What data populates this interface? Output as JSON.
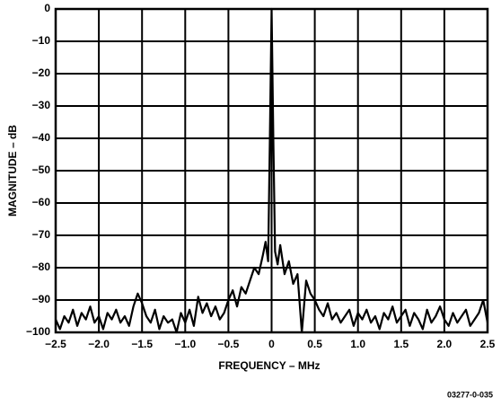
{
  "chart_data": {
    "type": "line",
    "x_label": "FREQUENCY – MHz",
    "y_label": "MAGNITUDE – dB",
    "annotation": "03277-0-035",
    "xlim": [
      -2.5,
      2.5
    ],
    "ylim": [
      -100,
      0
    ],
    "xticks": [
      {
        "value": -2.5,
        "label": "−2.5"
      },
      {
        "value": -2,
        "label": "−2.0"
      },
      {
        "value": -1.5,
        "label": "−1.5"
      },
      {
        "value": -1,
        "label": "−1.0"
      },
      {
        "value": -0.5,
        "label": "−0.5"
      },
      0,
      0.5,
      {
        "value": 1,
        "label": "1.0"
      },
      1.5,
      {
        "value": 2,
        "label": "2.0"
      },
      2.5
    ],
    "yticks": [
      0,
      {
        "value": -10,
        "label": "−10"
      },
      {
        "value": -20,
        "label": "−20"
      },
      {
        "value": -30,
        "label": "−30"
      },
      {
        "value": -40,
        "label": "−40"
      },
      {
        "value": -50,
        "label": "−50"
      },
      {
        "value": -60,
        "label": "−60"
      },
      {
        "value": -70,
        "label": "−70"
      },
      {
        "value": -80,
        "label": "−80"
      },
      {
        "value": -90,
        "label": "−90"
      },
      {
        "value": -100,
        "label": "−100"
      }
    ],
    "grid": true,
    "x": [
      -2.5,
      -2.45,
      -2.4,
      -2.35,
      -2.3,
      -2.25,
      -2.2,
      -2.15,
      -2.1,
      -2.05,
      -2,
      -1.95,
      -1.9,
      -1.85,
      -1.8,
      -1.75,
      -1.7,
      -1.65,
      -1.6,
      -1.55,
      -1.5,
      -1.45,
      -1.4,
      -1.35,
      -1.3,
      -1.25,
      -1.2,
      -1.15,
      -1.1,
      -1.05,
      -1,
      -0.95,
      -0.9,
      -0.85,
      -0.8,
      -0.75,
      -0.7,
      -0.65,
      -0.6,
      -0.55,
      -0.5,
      -0.45,
      -0.4,
      -0.35,
      -0.3,
      -0.25,
      -0.2,
      -0.15,
      -0.1,
      -0.07,
      -0.04,
      -0.02,
      0,
      0.02,
      0.04,
      0.07,
      0.1,
      0.15,
      0.2,
      0.25,
      0.3,
      0.35,
      0.4,
      0.45,
      0.5,
      0.55,
      0.6,
      0.65,
      0.7,
      0.75,
      0.8,
      0.85,
      0.9,
      0.95,
      1,
      1.05,
      1.1,
      1.15,
      1.2,
      1.25,
      1.3,
      1.35,
      1.4,
      1.45,
      1.5,
      1.55,
      1.6,
      1.65,
      1.7,
      1.75,
      1.8,
      1.85,
      1.9,
      1.95,
      2,
      2.05,
      2.1,
      2.15,
      2.2,
      2.25,
      2.3,
      2.35,
      2.4,
      2.45,
      2.5
    ],
    "series": [
      {
        "color": "#000000",
        "values": [
          -96,
          -99,
          -95,
          -97,
          -93,
          -98,
          -94,
          -96,
          -92,
          -97,
          -95,
          -99,
          -94,
          -96,
          -93,
          -97,
          -95,
          -98,
          -92,
          -88,
          -91,
          -95,
          -97,
          -93,
          -99,
          -95,
          -97,
          -96,
          -100,
          -94,
          -97,
          -93,
          -98,
          -89,
          -94,
          -91,
          -95,
          -92,
          -96,
          -94,
          -90,
          -87,
          -92,
          -86,
          -88,
          -84,
          -80,
          -82,
          -76,
          -72,
          -78,
          -40,
          0,
          -40,
          -75,
          -79,
          -73,
          -82,
          -78,
          -85,
          -82,
          -100,
          -84,
          -88,
          -90,
          -93,
          -95,
          -91,
          -96,
          -94,
          -97,
          -95,
          -93,
          -98,
          -94,
          -96,
          -93,
          -97,
          -95,
          -99,
          -94,
          -96,
          -92,
          -97,
          -95,
          -93,
          -98,
          -94,
          -96,
          -99,
          -93,
          -97,
          -95,
          -92,
          -96,
          -98,
          -94,
          -97,
          -95,
          -93,
          -98,
          -96,
          -94,
          -90,
          -97
        ]
      }
    ]
  }
}
